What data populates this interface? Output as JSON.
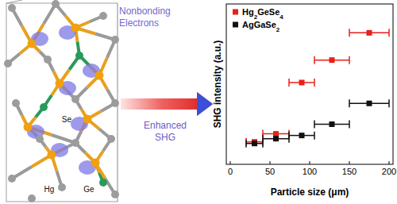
{
  "chart_data": {
    "type": "scatter",
    "x_label": "Particle size (μm)",
    "y_label": "SHG intensity (a.u.)",
    "x": [
      30.5,
      57.5,
      90,
      128,
      175
    ],
    "series": [
      {
        "name": "Hg2GeSe4",
        "color": "#e8201a",
        "marker": "square",
        "values": [
          1.4,
          1.9,
          5.1,
          6.5,
          8.2
        ],
        "x_error": [
          10.5,
          16.5,
          16,
          22,
          25
        ]
      },
      {
        "name": "AgGaSe2",
        "color": "#111111",
        "marker": "square",
        "values": [
          1.3,
          1.6,
          1.8,
          2.5,
          3.8
        ],
        "x_error": [
          10.5,
          16.5,
          16,
          22,
          25
        ]
      }
    ],
    "xlim": [
      -5,
      205
    ],
    "xticks": [
      0,
      50,
      100,
      150,
      200
    ],
    "ylim": [
      0,
      10
    ],
    "tick_labels": "x",
    "legend": "upper left",
    "grid": false
  },
  "diagram": {
    "annotation": "Nonbonding Electrons",
    "arrow_label": "Enhanced SHG",
    "atom_labels": [
      "Se",
      "Hg",
      "Ge"
    ]
  }
}
